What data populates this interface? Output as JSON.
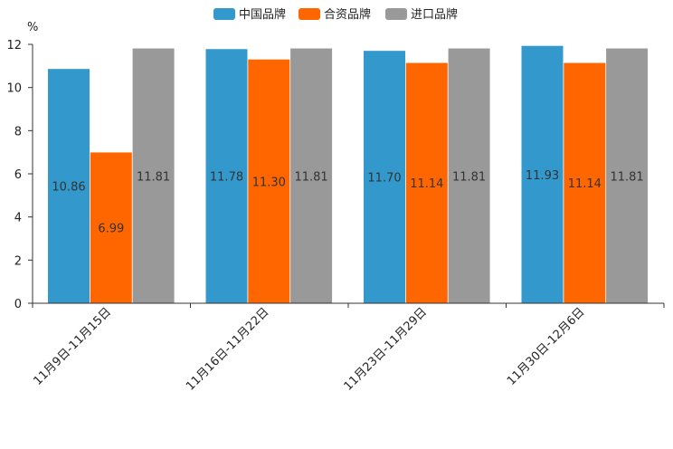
{
  "chart_data": {
    "type": "bar",
    "title": "",
    "xlabel": "",
    "ylabel": "%",
    "ylim": [
      0,
      12
    ],
    "yticks": [
      "0",
      "2",
      "4",
      "6",
      "8",
      "10",
      "12"
    ],
    "categories": [
      "11月9日-11月15日",
      "11月16日-11月22日",
      "11月23日-11月29日",
      "11月30日-12月6日"
    ],
    "series": [
      {
        "name": "中国品牌",
        "color": "#3399cc",
        "values": [
          10.86,
          11.78,
          11.7,
          11.93
        ],
        "labels": [
          "10.86",
          "11.78",
          "11.70",
          "11.93"
        ]
      },
      {
        "name": "合资品牌",
        "color": "#ff6600",
        "values": [
          6.99,
          11.3,
          11.14,
          11.14
        ],
        "labels": [
          "6.99",
          "11.30",
          "11.14",
          "11.14"
        ]
      },
      {
        "name": "进口品牌",
        "color": "#999999",
        "values": [
          11.81,
          11.81,
          11.81,
          11.81
        ],
        "labels": [
          "11.81",
          "11.81",
          "11.81",
          "11.81"
        ]
      }
    ],
    "legend": "top-center",
    "grid": false
  }
}
